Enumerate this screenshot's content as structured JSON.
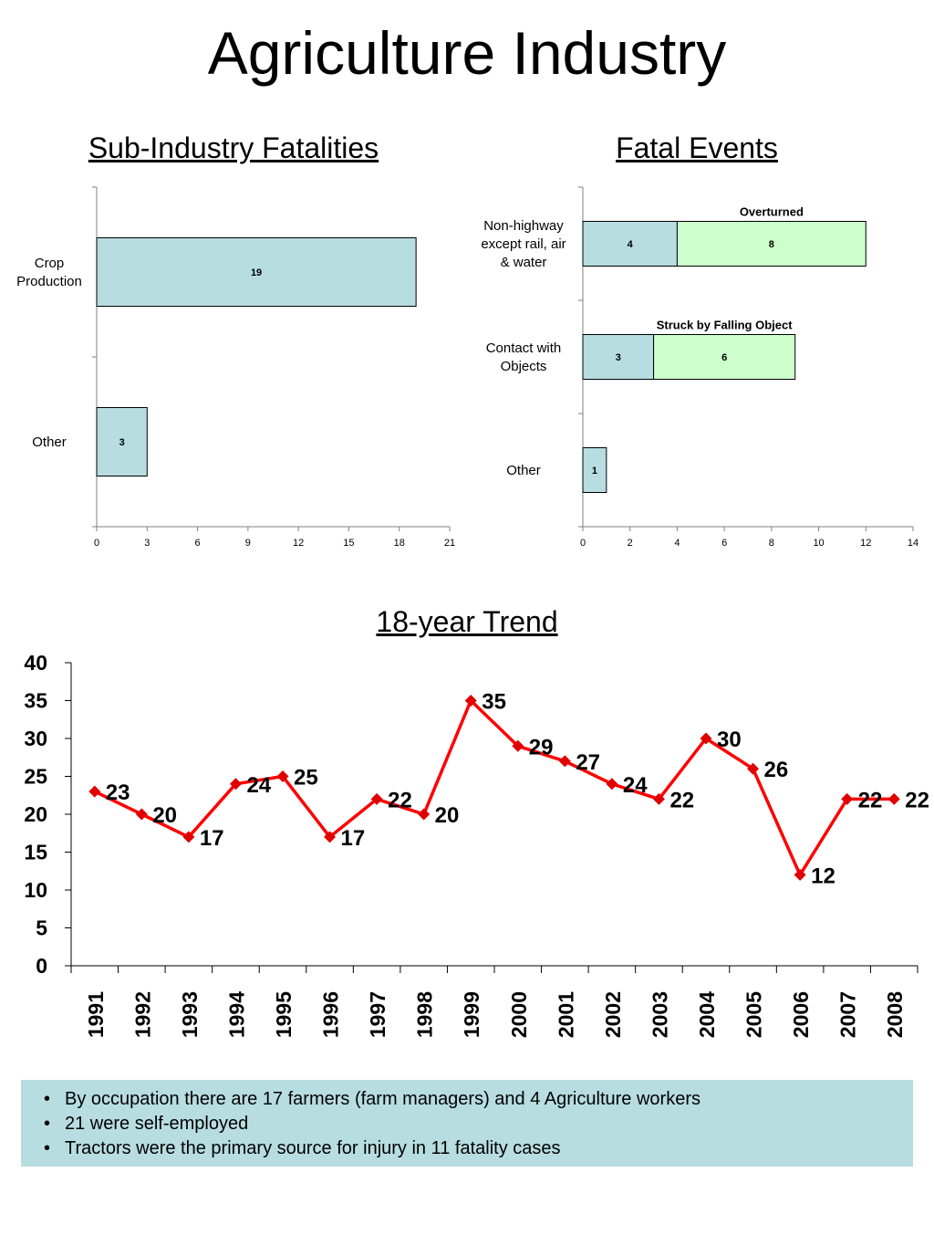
{
  "page": {
    "title": "Agriculture Industry",
    "notes": [
      " By occupation there are 17 farmers (farm managers) and 4 Agriculture workers",
      "21 were self-employed",
      "Tractors were the primary source for injury in 11 fatality cases"
    ],
    "bullet": "•"
  },
  "colors": {
    "bar_blue": "#b7dde0",
    "bar_green": "#ccffcc",
    "line_red": "#ff0000",
    "marker_red": "#e00000",
    "notes_bg": "#b7dde0"
  },
  "chart_data": [
    {
      "id": "sub-industry",
      "type": "bar",
      "orientation": "horizontal",
      "title": "Sub-Industry Fatalities",
      "categories": [
        "Crop Production",
        "Other"
      ],
      "values": [
        19,
        3
      ],
      "xlim": [
        0,
        21
      ],
      "xticks": [
        0,
        3,
        6,
        9,
        12,
        15,
        18,
        21
      ],
      "grid": false,
      "legend": "none"
    },
    {
      "id": "fatal-events",
      "type": "bar",
      "orientation": "horizontal",
      "stacked": true,
      "title": "Fatal Events",
      "categories": [
        "Non-highway except rail, air & water",
        "Contact with Objects",
        "Other"
      ],
      "series": [
        {
          "values": [
            4,
            3,
            1
          ]
        },
        {
          "values": [
            8,
            6,
            null
          ]
        }
      ],
      "annotations": [
        "Overturned",
        "Struck by Falling Object"
      ],
      "xlim": [
        0,
        14
      ],
      "xticks": [
        0,
        2,
        4,
        6,
        8,
        10,
        12,
        14
      ],
      "grid": false,
      "legend": "none"
    },
    {
      "id": "trend",
      "type": "line",
      "title": "18-year Trend",
      "x": [
        "1991",
        "1992",
        "1993",
        "1994",
        "1995",
        "1996",
        "1997",
        "1998",
        "1999",
        "2000",
        "2001",
        "2002",
        "2003",
        "2004",
        "2005",
        "2006",
        "2007",
        "2008"
      ],
      "y": [
        23,
        20,
        17,
        24,
        25,
        17,
        22,
        20,
        35,
        29,
        27,
        24,
        22,
        30,
        26,
        12,
        22,
        22
      ],
      "ylim": [
        0,
        40
      ],
      "yticks": [
        0,
        5,
        10,
        15,
        20,
        25,
        30,
        35,
        40
      ],
      "grid": false,
      "legend": "none"
    }
  ]
}
